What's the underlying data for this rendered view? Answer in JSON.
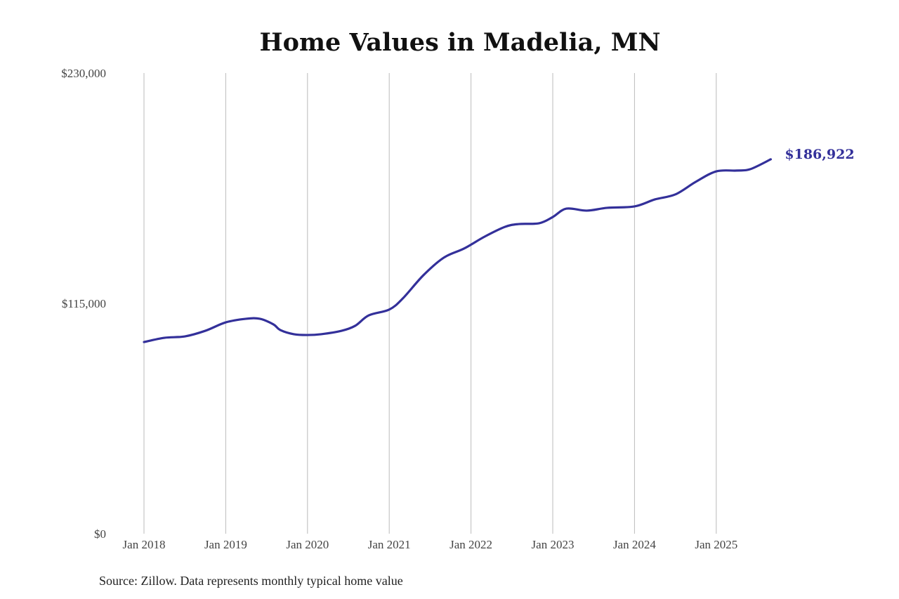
{
  "chart_data": {
    "type": "line",
    "title": "Home Values in Madelia, MN",
    "source": "Source: Zillow. Data represents monthly typical home value",
    "xlabel": "",
    "ylabel": "",
    "ylim": [
      0,
      230000
    ],
    "y_ticks": [
      0,
      115000,
      230000
    ],
    "y_tick_labels": [
      "$0",
      "$115,000",
      "$230,000"
    ],
    "x_ticks": [
      "2018-01",
      "2019-01",
      "2020-01",
      "2021-01",
      "2022-01",
      "2023-01",
      "2024-01",
      "2025-01"
    ],
    "x_tick_labels": [
      "Jan 2018",
      "Jan 2019",
      "Jan 2020",
      "Jan 2021",
      "Jan 2022",
      "Jan 2023",
      "Jan 2024",
      "Jan 2025"
    ],
    "grid": "vertical",
    "line_color": "#33309a",
    "end_label": "$186,922",
    "series": [
      {
        "x": [
          "2018-01",
          "2018-04",
          "2018-07",
          "2018-10",
          "2019-01",
          "2019-04",
          "2019-06",
          "2019-08",
          "2019-09",
          "2019-11",
          "2020-01",
          "2020-03",
          "2020-06",
          "2020-08",
          "2020-10",
          "2021-01",
          "2021-03",
          "2021-06",
          "2021-09",
          "2021-12",
          "2022-03",
          "2022-06",
          "2022-08",
          "2022-11",
          "2023-01",
          "2023-03",
          "2023-06",
          "2023-09",
          "2024-01",
          "2024-04",
          "2024-07",
          "2024-10",
          "2025-01",
          "2025-04",
          "2025-06",
          "2025-09"
        ],
        "values": [
          95700,
          97800,
          98500,
          101300,
          105500,
          107300,
          107300,
          104500,
          101700,
          99600,
          99200,
          99600,
          101300,
          103800,
          109000,
          111900,
          117500,
          129000,
          137800,
          142400,
          148300,
          153200,
          154600,
          155000,
          158100,
          162300,
          161300,
          162700,
          163400,
          166900,
          169400,
          175700,
          180900,
          181300,
          182000,
          186922
        ]
      }
    ]
  }
}
